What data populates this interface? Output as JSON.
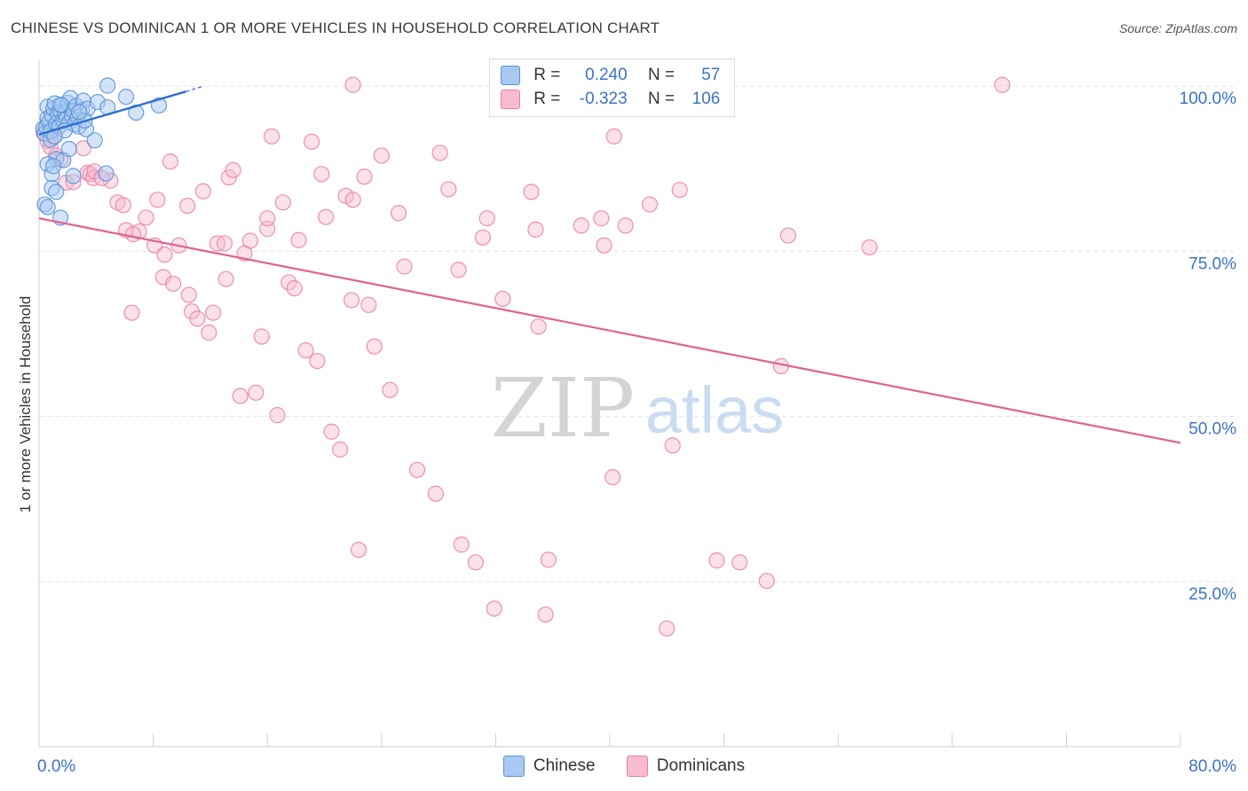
{
  "title": "CHINESE VS DOMINICAN 1 OR MORE VEHICLES IN HOUSEHOLD CORRELATION CHART",
  "source": "Source: ZipAtlas.com",
  "watermark": {
    "zip": "ZIP",
    "atlas": "atlas"
  },
  "legend": {
    "chinese": {
      "r_label": "R =",
      "r_value": "0.240",
      "n_label": "N =",
      "n_value": "57"
    },
    "dominicans": {
      "r_label": "R =",
      "r_value": "-0.323",
      "n_label": "N =",
      "n_value": "106"
    }
  },
  "colors": {
    "chinese_fill": "#a9c9f2",
    "chinese_stroke": "#5b93d9",
    "chinese_line": "#2f6fcf",
    "dominican_fill": "#f7bcd0",
    "dominican_stroke": "#e97ea3",
    "dominican_line": "#e0628f",
    "grid": "#e2e2e2",
    "axis_text": "#3b73c4"
  },
  "chart_data": {
    "type": "scatter",
    "title": "CHINESE VS DOMINICAN 1 OR MORE VEHICLES IN HOUSEHOLD CORRELATION CHART",
    "xlabel": "",
    "ylabel": "1 or more Vehicles in Household",
    "xlim": [
      0,
      80
    ],
    "ylim": [
      0,
      105
    ],
    "x_tick_labels": [
      {
        "value": 0,
        "label": "0.0%"
      },
      {
        "value": 80,
        "label": "80.0%"
      }
    ],
    "y_tick_labels": [
      {
        "value": 100,
        "label": "100.0%"
      },
      {
        "value": 75,
        "label": "75.0%"
      },
      {
        "value": 50,
        "label": "50.0%"
      },
      {
        "value": 25,
        "label": "25.0%"
      }
    ],
    "grid": true,
    "legend_position": "top-center",
    "series": [
      {
        "name": "Chinese",
        "trend": {
          "x": [
            0,
            10.3
          ],
          "y": [
            92.7,
            99.2
          ],
          "dashed_to": [
            11.5,
            100.0
          ]
        },
        "points": [
          [
            0.3,
            93.6
          ],
          [
            0.4,
            92.8
          ],
          [
            0.5,
            93.8
          ],
          [
            0.6,
            95.2
          ],
          [
            0.6,
            96.9
          ],
          [
            0.7,
            94.6
          ],
          [
            0.8,
            91.9
          ],
          [
            0.8,
            93.2
          ],
          [
            0.9,
            95.6
          ],
          [
            1.0,
            96.6
          ],
          [
            1.1,
            97.4
          ],
          [
            1.2,
            94.3
          ],
          [
            1.3,
            95.8
          ],
          [
            1.4,
            93.9
          ],
          [
            1.5,
            96.2
          ],
          [
            1.6,
            97.1
          ],
          [
            1.7,
            94.8
          ],
          [
            1.8,
            96.0
          ],
          [
            1.9,
            95.0
          ],
          [
            2.0,
            97.5
          ],
          [
            2.1,
            94.5
          ],
          [
            2.2,
            98.2
          ],
          [
            2.3,
            95.5
          ],
          [
            2.4,
            96.3
          ],
          [
            2.5,
            94.2
          ],
          [
            2.6,
            97.0
          ],
          [
            2.7,
            95.3
          ],
          [
            2.8,
            93.9
          ],
          [
            3.0,
            96.4
          ],
          [
            3.1,
            97.8
          ],
          [
            3.3,
            93.5
          ],
          [
            1.2,
            89.0
          ],
          [
            0.6,
            88.2
          ],
          [
            0.9,
            86.7
          ],
          [
            0.9,
            84.6
          ],
          [
            1.2,
            84.0
          ],
          [
            0.4,
            82.1
          ],
          [
            0.6,
            81.7
          ],
          [
            1.5,
            80.1
          ],
          [
            1.7,
            88.8
          ],
          [
            2.1,
            90.5
          ],
          [
            3.4,
            96.6
          ],
          [
            3.2,
            94.8
          ],
          [
            3.9,
            91.8
          ],
          [
            4.1,
            97.6
          ],
          [
            4.8,
            96.8
          ],
          [
            4.8,
            100.1
          ],
          [
            6.1,
            98.4
          ],
          [
            6.8,
            96.0
          ],
          [
            8.4,
            97.1
          ],
          [
            4.7,
            86.8
          ],
          [
            2.4,
            86.4
          ],
          [
            1.0,
            87.9
          ],
          [
            1.5,
            97.2
          ],
          [
            2.8,
            96.1
          ],
          [
            1.8,
            93.3
          ],
          [
            1.1,
            92.4
          ]
        ]
      },
      {
        "name": "Dominicans",
        "trend": {
          "x": [
            0,
            80
          ],
          "y": [
            80.0,
            46.0
          ]
        },
        "points": [
          [
            22.0,
            100.2
          ],
          [
            67.5,
            100.2
          ],
          [
            0.3,
            93.0
          ],
          [
            0.6,
            91.7
          ],
          [
            0.8,
            90.8
          ],
          [
            1.0,
            92.3
          ],
          [
            1.2,
            89.5
          ],
          [
            1.5,
            88.9
          ],
          [
            1.9,
            85.4
          ],
          [
            2.4,
            85.5
          ],
          [
            3.1,
            90.6
          ],
          [
            3.4,
            86.9
          ],
          [
            3.6,
            86.7
          ],
          [
            3.8,
            86.1
          ],
          [
            5.0,
            85.7
          ],
          [
            5.5,
            82.4
          ],
          [
            5.9,
            82.0
          ],
          [
            6.1,
            78.2
          ],
          [
            7.0,
            78.0
          ],
          [
            7.5,
            80.1
          ],
          [
            6.6,
            77.6
          ],
          [
            8.1,
            75.9
          ],
          [
            8.3,
            82.8
          ],
          [
            8.8,
            74.5
          ],
          [
            9.2,
            88.6
          ],
          [
            8.7,
            71.1
          ],
          [
            9.4,
            70.1
          ],
          [
            9.8,
            75.9
          ],
          [
            10.5,
            68.4
          ],
          [
            10.4,
            81.9
          ],
          [
            10.7,
            65.9
          ],
          [
            11.1,
            64.8
          ],
          [
            11.5,
            84.1
          ],
          [
            11.9,
            62.7
          ],
          [
            12.2,
            65.7
          ],
          [
            12.5,
            76.2
          ],
          [
            13.0,
            76.2
          ],
          [
            13.3,
            86.2
          ],
          [
            13.1,
            70.8
          ],
          [
            13.6,
            87.3
          ],
          [
            14.1,
            53.1
          ],
          [
            14.4,
            74.7
          ],
          [
            14.8,
            76.6
          ],
          [
            15.2,
            53.6
          ],
          [
            15.6,
            62.1
          ],
          [
            16.0,
            78.4
          ],
          [
            16.3,
            92.4
          ],
          [
            16.7,
            50.2
          ],
          [
            17.1,
            82.4
          ],
          [
            17.5,
            70.3
          ],
          [
            17.9,
            69.4
          ],
          [
            18.2,
            76.7
          ],
          [
            18.7,
            60.0
          ],
          [
            19.1,
            91.6
          ],
          [
            19.5,
            58.4
          ],
          [
            19.8,
            86.7
          ],
          [
            20.1,
            80.2
          ],
          [
            20.5,
            47.7
          ],
          [
            21.1,
            45.0
          ],
          [
            21.5,
            83.4
          ],
          [
            22.0,
            82.8
          ],
          [
            22.8,
            86.3
          ],
          [
            22.4,
            29.8
          ],
          [
            21.9,
            67.6
          ],
          [
            23.1,
            66.9
          ],
          [
            23.5,
            60.6
          ],
          [
            24.0,
            89.5
          ],
          [
            24.6,
            54.0
          ],
          [
            25.2,
            80.8
          ],
          [
            25.6,
            72.7
          ],
          [
            26.5,
            41.9
          ],
          [
            27.8,
            38.3
          ],
          [
            28.1,
            89.9
          ],
          [
            28.7,
            84.4
          ],
          [
            29.4,
            72.2
          ],
          [
            29.6,
            30.6
          ],
          [
            30.6,
            27.9
          ],
          [
            31.1,
            77.1
          ],
          [
            31.4,
            80.0
          ],
          [
            31.9,
            20.9
          ],
          [
            32.5,
            67.8
          ],
          [
            34.5,
            84.0
          ],
          [
            34.8,
            78.3
          ],
          [
            35.0,
            63.6
          ],
          [
            35.5,
            20.0
          ],
          [
            35.7,
            28.3
          ],
          [
            38.0,
            78.9
          ],
          [
            39.4,
            80.0
          ],
          [
            39.6,
            75.9
          ],
          [
            40.2,
            40.8
          ],
          [
            40.3,
            92.4
          ],
          [
            41.1,
            78.9
          ],
          [
            42.8,
            82.1
          ],
          [
            44.0,
            17.9
          ],
          [
            44.4,
            45.6
          ],
          [
            44.9,
            84.3
          ],
          [
            47.5,
            28.2
          ],
          [
            49.1,
            27.9
          ],
          [
            51.0,
            25.1
          ],
          [
            52.0,
            57.6
          ],
          [
            52.5,
            77.4
          ],
          [
            58.2,
            75.6
          ],
          [
            3.9,
            87.1
          ],
          [
            4.4,
            86.1
          ],
          [
            16.0,
            80.0
          ],
          [
            6.5,
            65.7
          ]
        ]
      }
    ]
  },
  "bottom_legend": {
    "chinese": "Chinese",
    "dominicans": "Dominicans"
  }
}
